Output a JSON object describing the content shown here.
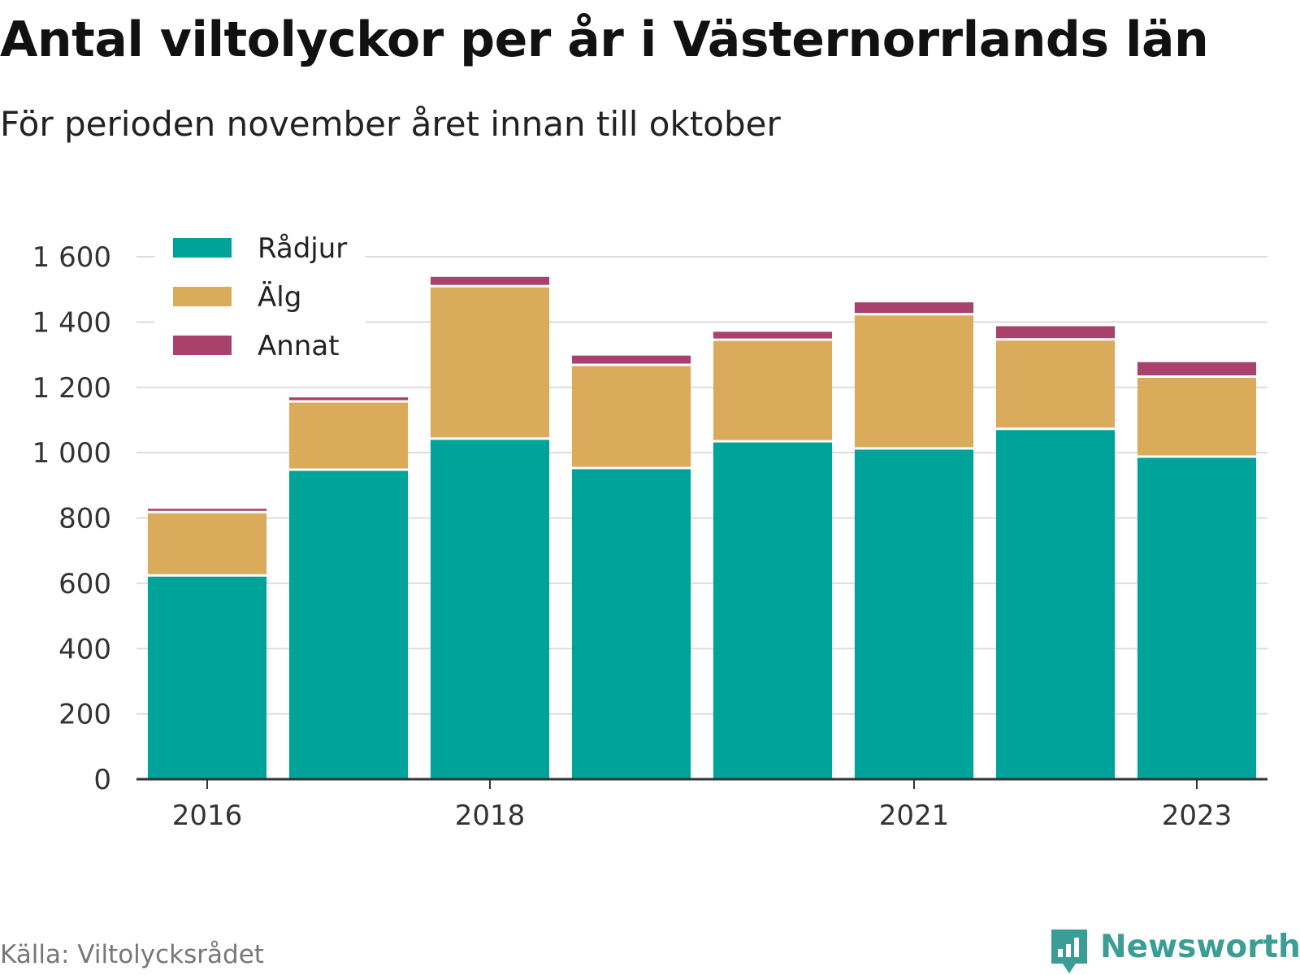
{
  "title": "Antal viltolyckor per år i Västernorrlands län",
  "subtitle": "För perioden november året innan till oktober",
  "source": "Källa: Viltolycksrådet",
  "brand": {
    "name": "Newsworthy",
    "icon": "bar-chart-speech-bubble-icon",
    "color": "#3b9e96"
  },
  "chart_data": {
    "type": "bar",
    "stacked": true,
    "categories": [
      "2016",
      "2017",
      "2018",
      "2019",
      "2020",
      "2021",
      "2022",
      "2023"
    ],
    "x_tick_labels": [
      "2016",
      "2018",
      "2021",
      "2023"
    ],
    "series": [
      {
        "name": "Rådjur",
        "color": "#00a39a",
        "values": [
          624,
          948,
          1043,
          953,
          1035,
          1013,
          1073,
          988
        ]
      },
      {
        "name": "Älg",
        "color": "#d9ab5b",
        "values": [
          194,
          209,
          467,
          316,
          311,
          411,
          274,
          245
        ]
      },
      {
        "name": "Annat",
        "color": "#a8426c",
        "values": [
          14,
          16,
          32,
          32,
          28,
          40,
          44,
          48
        ]
      }
    ],
    "ylim": [
      0,
      1600
    ],
    "yticks": [
      0,
      200,
      400,
      600,
      800,
      1000,
      1200,
      1400,
      1600
    ],
    "ytick_labels": [
      "0",
      "200",
      "400",
      "600",
      "800",
      "1 000",
      "1 200",
      "1 400",
      "1 600"
    ],
    "xlabel": "",
    "ylabel": "",
    "grid": true,
    "legend_position": "top-left"
  }
}
